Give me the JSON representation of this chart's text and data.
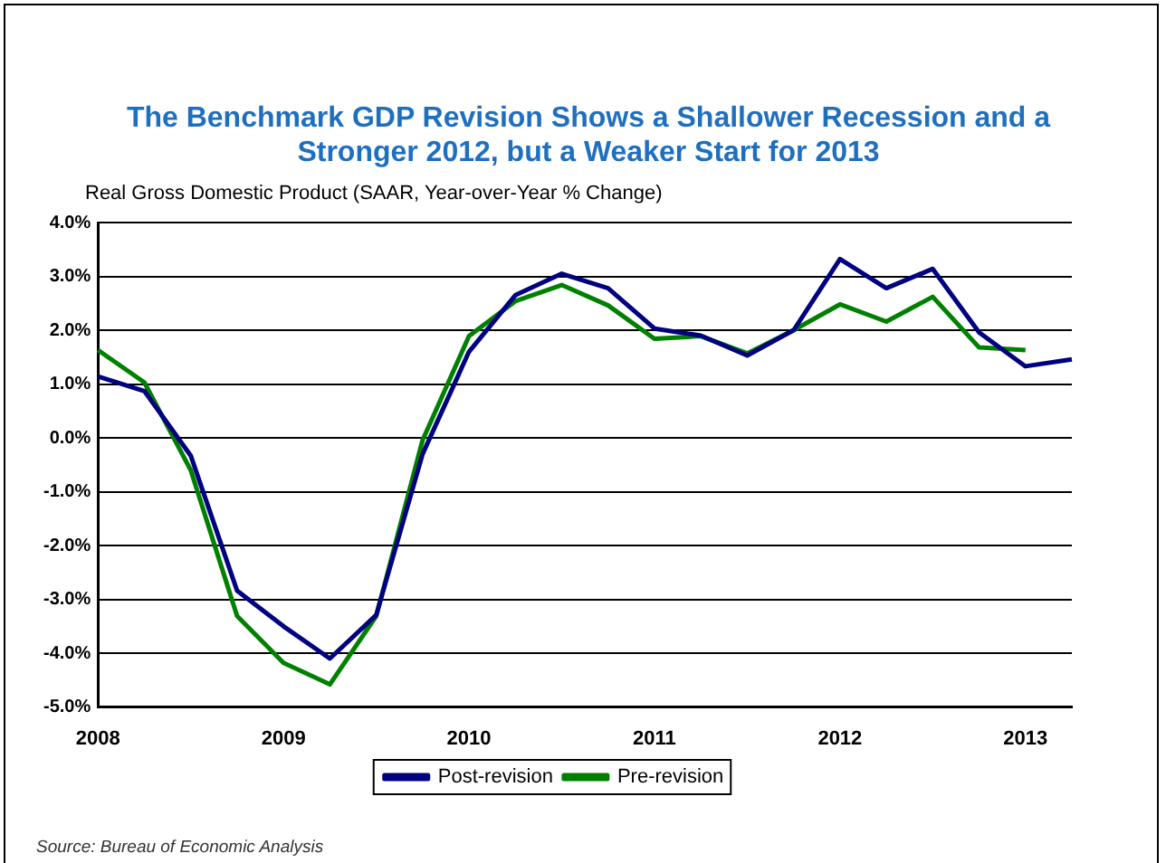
{
  "chart_data": {
    "type": "line",
    "title": "The Benchmark GDP Revision Shows a Shallower Recession and a Stronger 2012, but a Weaker Start for 2013",
    "ylabel": "Real Gross Domestic Product (SAAR, Year-over-Year % Change)",
    "categories": [
      "2008",
      null,
      null,
      null,
      "2009",
      null,
      null,
      null,
      "2010",
      null,
      null,
      null,
      "2011",
      null,
      null,
      null,
      "2012",
      null,
      null,
      null,
      "2013",
      null
    ],
    "series": [
      {
        "name": "Post-revision",
        "color": "#000080",
        "values": [
          1.14,
          0.87,
          -0.33,
          -2.84,
          -3.5,
          -4.1,
          -3.29,
          -0.3,
          1.6,
          2.65,
          3.05,
          2.78,
          2.03,
          1.9,
          1.53,
          2.0,
          3.32,
          2.78,
          3.14,
          1.96,
          1.33,
          1.46
        ]
      },
      {
        "name": "Pre-revision",
        "color": "#008000",
        "values": [
          1.63,
          1.03,
          -0.6,
          -3.31,
          -4.18,
          -4.58,
          -3.31,
          -0.04,
          1.89,
          2.54,
          2.84,
          2.46,
          1.84,
          1.89,
          1.57,
          2.0,
          2.48,
          2.16,
          2.62,
          1.68,
          1.63,
          null
        ]
      }
    ],
    "ylim": [
      -5,
      4
    ],
    "yticks": [
      {
        "value": -5,
        "label": "-5.0%"
      },
      {
        "value": -4,
        "label": "-4.0%"
      },
      {
        "value": -3,
        "label": "-3.0%"
      },
      {
        "value": -2,
        "label": "-2.0%"
      },
      {
        "value": -1,
        "label": "-1.0%"
      },
      {
        "value": 0,
        "label": "0.0%"
      },
      {
        "value": 1,
        "label": "1.0%"
      },
      {
        "value": 2,
        "label": "2.0%"
      },
      {
        "value": 3,
        "label": "3.0%"
      },
      {
        "value": 4,
        "label": "4.0%"
      }
    ],
    "grid": "y",
    "legend": "bottom",
    "marker": "none",
    "line_style": "solid",
    "annotations": [
      "Source: Bureau of Economic Analysis"
    ]
  }
}
